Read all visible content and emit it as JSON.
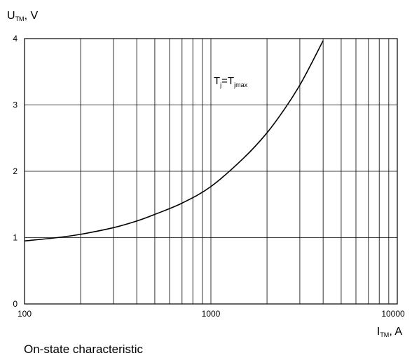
{
  "chart_data": {
    "type": "line",
    "title": "On-state characteristic",
    "xlabel": {
      "main": "I",
      "sub": "TM",
      "unit": ", A"
    },
    "ylabel": {
      "main": "U",
      "sub": "TM",
      "unit": ", V"
    },
    "xscale": "log",
    "xlim": [
      100,
      10000
    ],
    "ylim": [
      0,
      4
    ],
    "x_ticks": [
      "100",
      "1000",
      "10000"
    ],
    "y_ticks": [
      "0",
      "1",
      "2",
      "3",
      "4"
    ],
    "grid": true,
    "annotation": {
      "t1": "T",
      "s1": "j",
      "eq": "=T",
      "s2": "jmax"
    },
    "series": [
      {
        "x": [
          100,
          150,
          200,
          300,
          400,
          500,
          700,
          1000,
          1500,
          2000,
          2500,
          3000,
          3500,
          4000
        ],
        "y": [
          0.95,
          1.0,
          1.05,
          1.15,
          1.25,
          1.35,
          1.52,
          1.77,
          2.2,
          2.58,
          2.95,
          3.3,
          3.65,
          3.97
        ]
      }
    ]
  }
}
